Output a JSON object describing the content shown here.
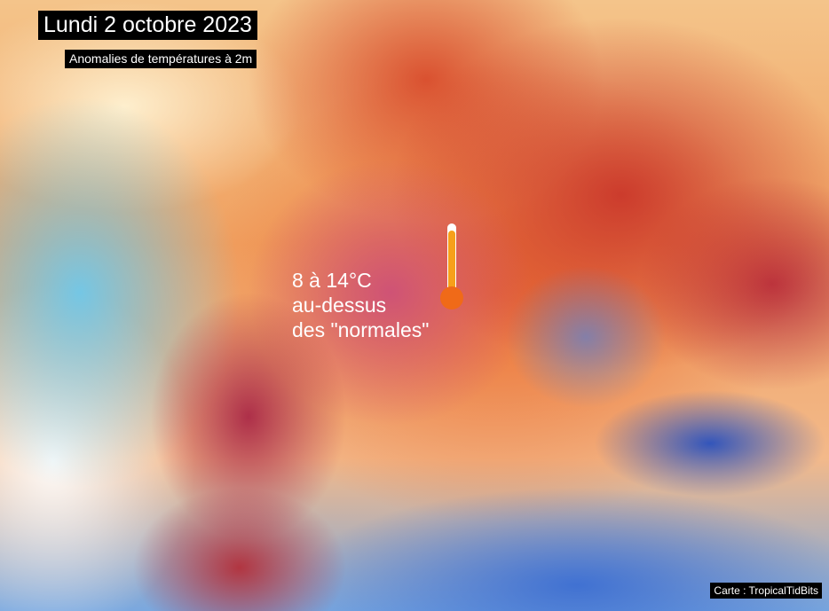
{
  "header": {
    "title": "Lundi 2 octobre 2023",
    "subtitle": "Anomalies de températures à 2m"
  },
  "annotation": {
    "line1": "8 à 14°C",
    "line2": "au-dessus",
    "line3": "des \"normales\""
  },
  "credit": "Carte : TropicalTidBits",
  "icons": {
    "annotation_icon": "thermometer-icon"
  },
  "colors": {
    "warm_anomaly": "#c8506e",
    "cold_anomaly": "#3a6ed0",
    "thermometer": "#f07a18"
  }
}
